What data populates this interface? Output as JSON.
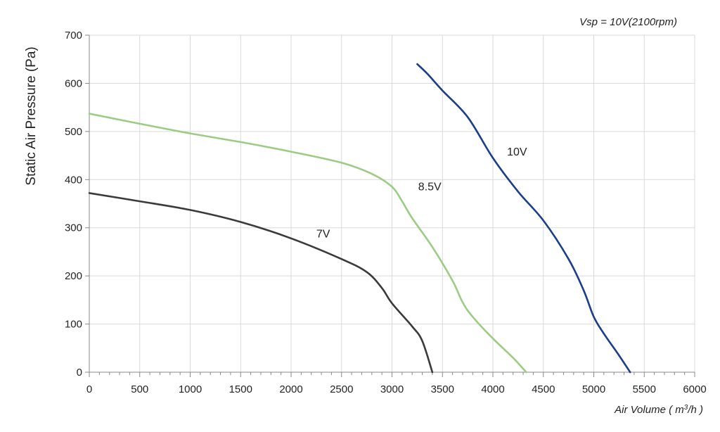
{
  "chart_data": {
    "type": "line",
    "title": "Vsp = 10V(2100rpm)",
    "xlabel_prefix": "Air Volume ( m",
    "xlabel_sup": "3",
    "xlabel_suffix": "/h )",
    "ylabel": "Static Air Pressure  (Pa)",
    "xlim": [
      0,
      6000
    ],
    "ylim": [
      0,
      700
    ],
    "x_ticks": [
      0,
      500,
      1000,
      1500,
      2000,
      2500,
      3000,
      3500,
      4000,
      4500,
      5000,
      5500,
      6000
    ],
    "y_ticks": [
      0,
      100,
      200,
      300,
      400,
      500,
      600,
      700
    ],
    "grid": true,
    "series": [
      {
        "name": "7V",
        "color": "#3a3a3a",
        "label_at": [
          2250,
          280
        ],
        "points": [
          [
            0,
            372
          ],
          [
            500,
            355
          ],
          [
            1000,
            337
          ],
          [
            1500,
            312
          ],
          [
            2000,
            278
          ],
          [
            2500,
            235
          ],
          [
            2750,
            208
          ],
          [
            2900,
            175
          ],
          [
            3000,
            143
          ],
          [
            3200,
            95
          ],
          [
            3300,
            65
          ],
          [
            3400,
            0
          ]
        ]
      },
      {
        "name": "8.5V",
        "color": "#9ccc84",
        "label_at": [
          3260,
          378
        ],
        "points": [
          [
            0,
            537
          ],
          [
            500,
            516
          ],
          [
            1000,
            496
          ],
          [
            1500,
            478
          ],
          [
            2000,
            458
          ],
          [
            2500,
            435
          ],
          [
            2800,
            412
          ],
          [
            3000,
            385
          ],
          [
            3100,
            355
          ],
          [
            3200,
            320
          ],
          [
            3400,
            260
          ],
          [
            3600,
            190
          ],
          [
            3700,
            145
          ],
          [
            3800,
            115
          ],
          [
            4000,
            70
          ],
          [
            4200,
            30
          ],
          [
            4330,
            0
          ]
        ]
      },
      {
        "name": "10V",
        "color": "#1a3e8c",
        "label_at": [
          4140,
          450
        ],
        "points": [
          [
            3250,
            640
          ],
          [
            3350,
            620
          ],
          [
            3500,
            585
          ],
          [
            3750,
            530
          ],
          [
            4000,
            445
          ],
          [
            4250,
            375
          ],
          [
            4500,
            315
          ],
          [
            4750,
            235
          ],
          [
            4900,
            170
          ],
          [
            5000,
            115
          ],
          [
            5100,
            80
          ],
          [
            5250,
            35
          ],
          [
            5360,
            0
          ]
        ]
      }
    ]
  }
}
